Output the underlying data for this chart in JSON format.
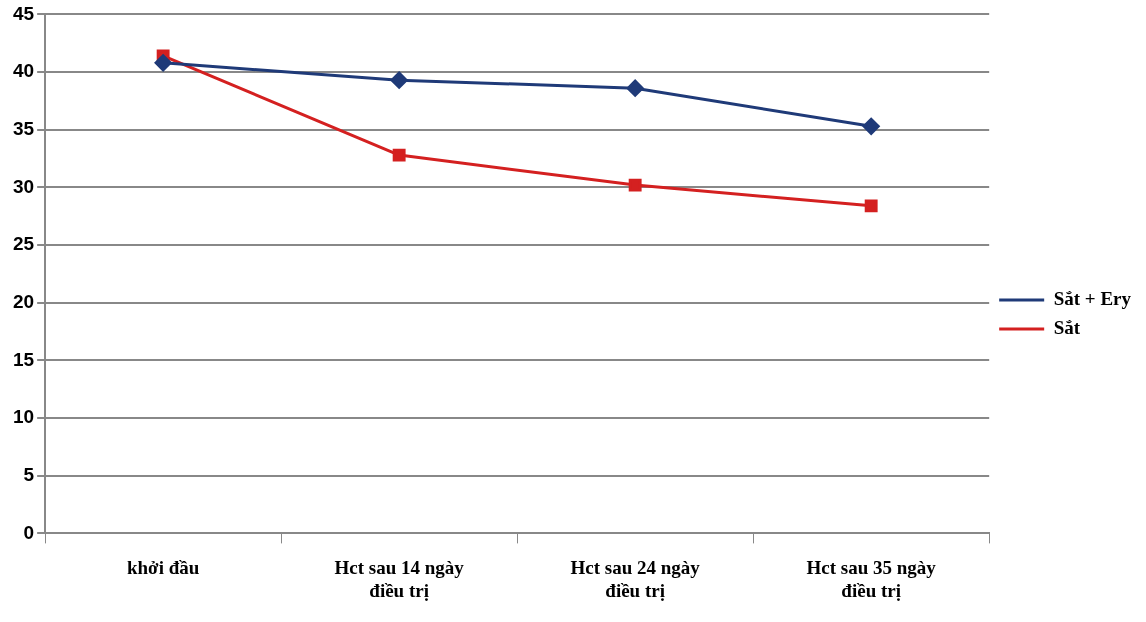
{
  "chart_data": {
    "type": "line",
    "categories": [
      "khởi đầu",
      "Hct sau 14 ngày điều trị",
      "Hct sau 24 ngày điều trị",
      "Hct sau 35 ngày điều trị"
    ],
    "series": [
      {
        "name": "Sắt + Ery",
        "color": "#1f3a78",
        "marker": "diamond",
        "values": [
          40.8,
          39.3,
          38.6,
          35.3
        ]
      },
      {
        "name": "Sắt",
        "color": "#d42020",
        "marker": "square",
        "values": [
          41.4,
          32.8,
          30.2,
          28.4
        ]
      }
    ],
    "ylim": [
      0,
      45
    ],
    "yticks": [
      0,
      5,
      10,
      15,
      20,
      25,
      30,
      35,
      40,
      45
    ],
    "grid": "y",
    "legend": "right",
    "line_style": "solid"
  }
}
